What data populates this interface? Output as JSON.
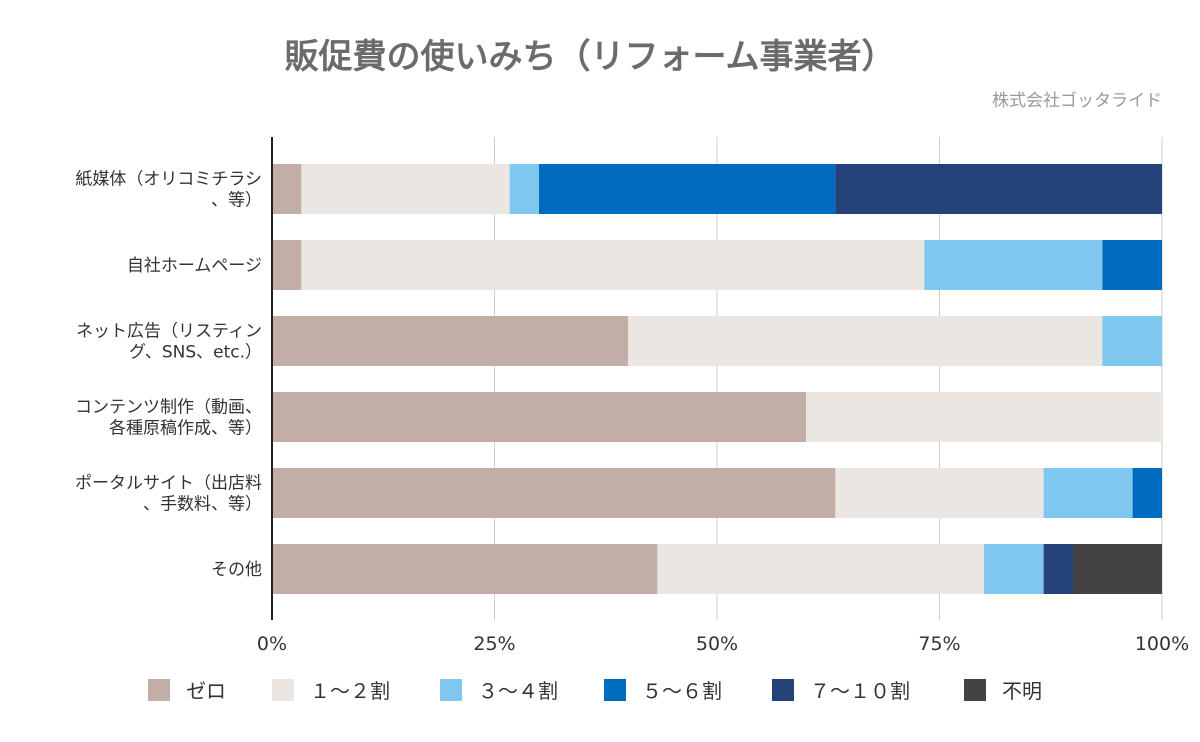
{
  "chart_data": {
    "type": "bar",
    "orientation": "horizontal",
    "stacked": "percent",
    "title": "販促費の使いみち（リフォーム事業者）",
    "subtitle": "株式会社ゴッタライド",
    "categories": [
      [
        "紙媒体（オリコミチラシ",
        "、等）"
      ],
      [
        "自社ホームページ"
      ],
      [
        "ネット広告（リスティン",
        "グ、SNS、etc.）"
      ],
      [
        "コンテンツ制作（動画、",
        "各種原稿作成、等）"
      ],
      [
        "ポータルサイト（出店料",
        "、手数料、等）"
      ],
      [
        "その他"
      ]
    ],
    "series": [
      {
        "name": "ゼロ",
        "color": "#c2aea6",
        "values": [
          3.3,
          3.3,
          40,
          60,
          63.3,
          43.3
        ]
      },
      {
        "name": "１～２割",
        "color": "#ebe6e2",
        "values": [
          23.4,
          70,
          53.3,
          40,
          23.4,
          36.7
        ]
      },
      {
        "name": "３～４割",
        "color": "#7fc7ef",
        "values": [
          3.3,
          20,
          6.7,
          0,
          10,
          6.7
        ]
      },
      {
        "name": "５～６割",
        "color": "#006cc0",
        "values": [
          33.3,
          6.7,
          0,
          0,
          3.3,
          0
        ]
      },
      {
        "name": "７～１０割",
        "color": "#244279",
        "values": [
          36.7,
          0,
          0,
          0,
          0,
          3.3
        ]
      },
      {
        "name": "不明",
        "color": "#434343",
        "values": [
          0,
          0,
          0,
          0,
          0,
          10
        ]
      }
    ],
    "xlim": [
      0,
      100
    ],
    "xticks": [
      "0%",
      "25%",
      "50%",
      "75%",
      "100%"
    ],
    "grid": true,
    "legend_position": "bottom"
  }
}
